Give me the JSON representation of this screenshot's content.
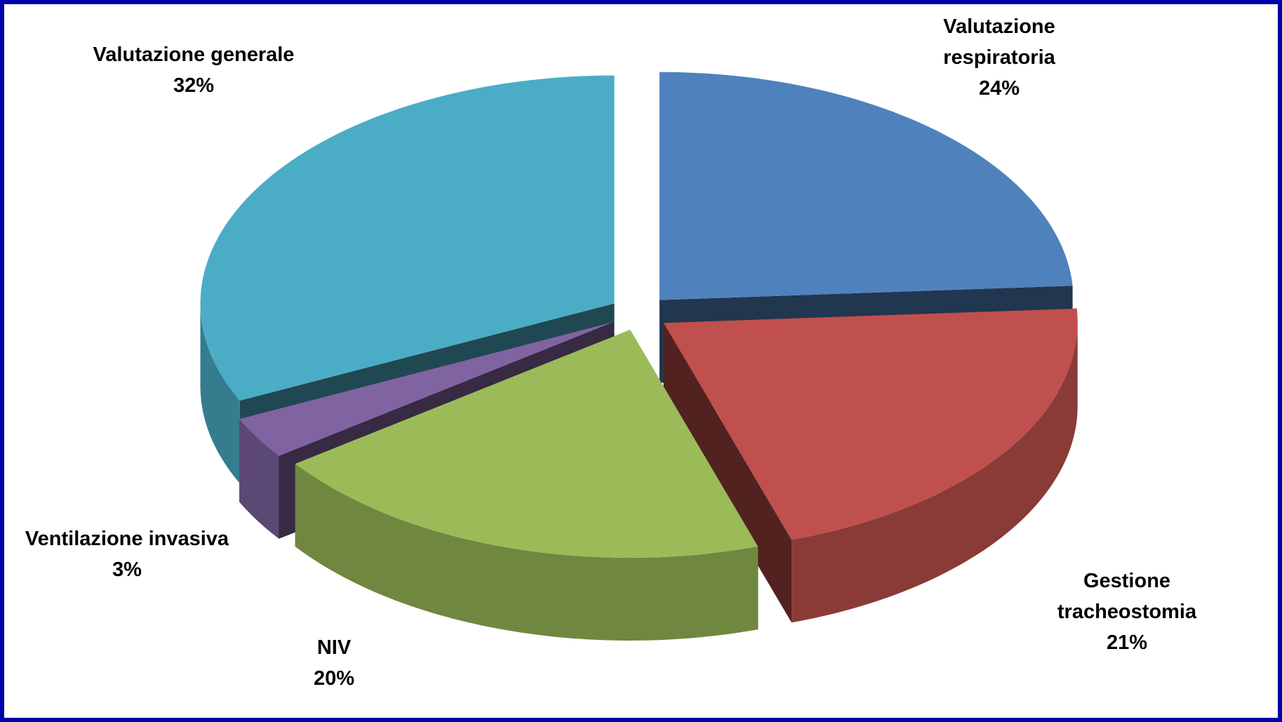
{
  "chart_data": {
    "type": "pie3d",
    "categories": [
      "Valutazione respiratoria",
      "Gestione tracheostomia",
      "NIV",
      "Ventilazione invasiva",
      "Valutazione generale"
    ],
    "values": [
      24,
      21,
      20,
      3,
      32
    ],
    "value_labels": [
      "24%",
      "21%",
      "20%",
      "3%",
      "32%"
    ],
    "colors": [
      "#4f81bd",
      "#c0504d",
      "#9bbb59",
      "#8064a2",
      "#4bacc6"
    ]
  }
}
